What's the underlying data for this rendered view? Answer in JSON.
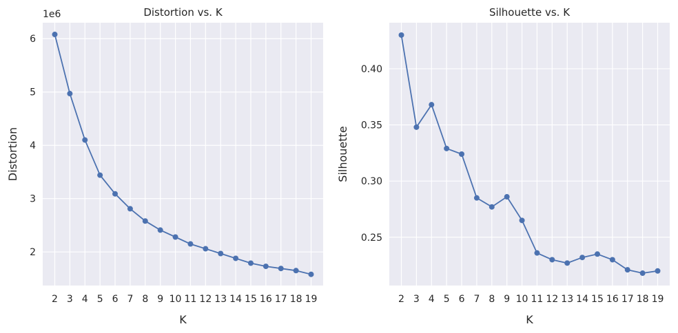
{
  "chart_data": [
    {
      "type": "line",
      "title": "Distortion vs. K",
      "xlabel": "K",
      "ylabel": "Distortion",
      "y_offset_label": "1e6",
      "x": [
        2,
        3,
        4,
        5,
        6,
        7,
        8,
        9,
        10,
        11,
        12,
        13,
        14,
        15,
        16,
        17,
        18,
        19
      ],
      "y": [
        6.08,
        4.97,
        4.1,
        3.44,
        3.09,
        2.81,
        2.58,
        2.41,
        2.28,
        2.15,
        2.06,
        1.97,
        1.88,
        1.79,
        1.73,
        1.69,
        1.65,
        1.58
      ],
      "xlim": [
        1.2,
        19.8
      ],
      "ylim": [
        1.37,
        6.3
      ],
      "yticks": [
        2,
        3,
        4,
        5,
        6
      ],
      "ytick_labels": [
        "2",
        "3",
        "4",
        "5",
        "6"
      ],
      "grid": true,
      "color": "#4C72B0"
    },
    {
      "type": "line",
      "title": "Silhouette vs. K",
      "xlabel": "K",
      "ylabel": "Silhouette",
      "x": [
        2,
        3,
        4,
        5,
        6,
        7,
        8,
        9,
        10,
        11,
        12,
        13,
        14,
        15,
        16,
        17,
        18,
        19
      ],
      "y": [
        0.43,
        0.348,
        0.368,
        0.329,
        0.324,
        0.285,
        0.277,
        0.286,
        0.265,
        0.236,
        0.23,
        0.227,
        0.232,
        0.235,
        0.23,
        0.221,
        0.218,
        0.22
      ],
      "xlim": [
        1.2,
        19.8
      ],
      "ylim": [
        0.207,
        0.441
      ],
      "yticks": [
        0.25,
        0.3,
        0.35,
        0.4
      ],
      "ytick_labels": [
        "0.25",
        "0.30",
        "0.35",
        "0.40"
      ],
      "grid": true,
      "color": "#4C72B0"
    }
  ]
}
